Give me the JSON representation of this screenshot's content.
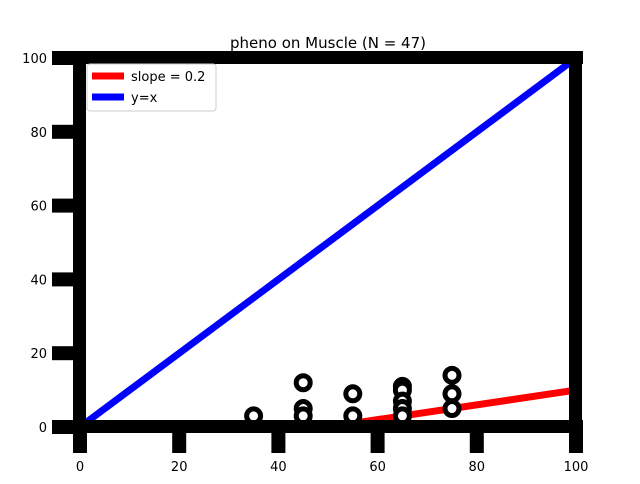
{
  "chart_data": {
    "type": "scatter",
    "title": "pheno on Muscle (N = 47)",
    "xlabel": "",
    "ylabel": "",
    "xlim": [
      0,
      100
    ],
    "ylim": [
      0,
      100
    ],
    "xticks": [
      0,
      20,
      40,
      60,
      80,
      100
    ],
    "yticks": [
      0,
      20,
      40,
      60,
      80,
      100
    ],
    "grid": false,
    "legend_position": "top-left",
    "points": [
      {
        "x": 35,
        "y": 3
      },
      {
        "x": 45,
        "y": 12
      },
      {
        "x": 45,
        "y": 5
      },
      {
        "x": 45,
        "y": 3
      },
      {
        "x": 55,
        "y": 9
      },
      {
        "x": 55,
        "y": 3
      },
      {
        "x": 65,
        "y": 11
      },
      {
        "x": 65,
        "y": 10
      },
      {
        "x": 65,
        "y": 7
      },
      {
        "x": 65,
        "y": 5
      },
      {
        "x": 65,
        "y": 3
      },
      {
        "x": 75,
        "y": 14
      },
      {
        "x": 75,
        "y": 9
      },
      {
        "x": 75,
        "y": 5
      }
    ],
    "lines": [
      {
        "name": "slope = 0.2",
        "color": "#ff0000",
        "x": [
          55,
          100
        ],
        "y": [
          1,
          10
        ]
      },
      {
        "name": "y=x",
        "color": "#0000ff",
        "x": [
          0,
          100
        ],
        "y": [
          0,
          100
        ]
      }
    ],
    "marker_color": "#000000",
    "frame_color": "#000000"
  }
}
